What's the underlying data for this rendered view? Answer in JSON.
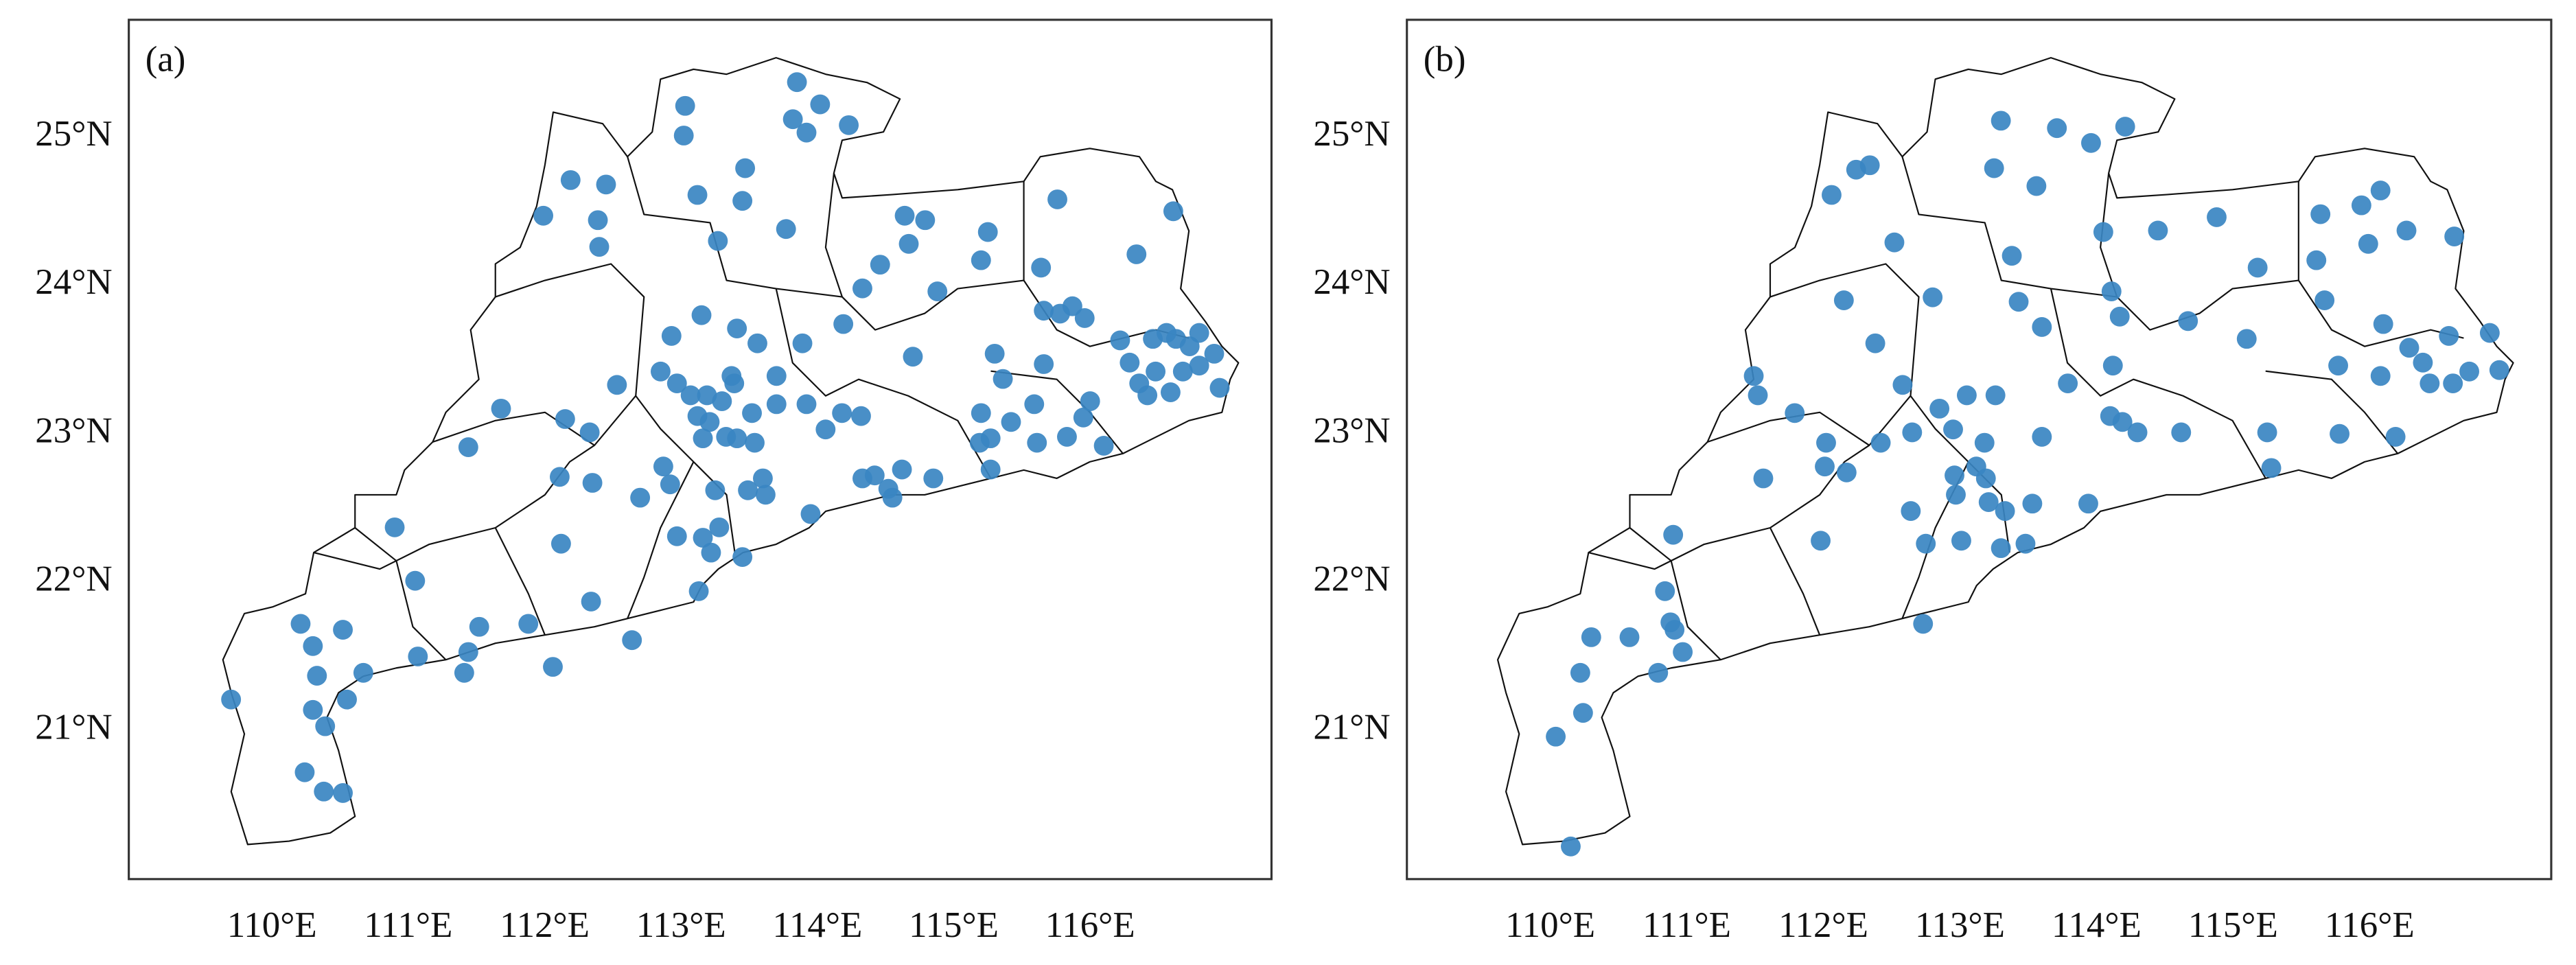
{
  "chart_data": [
    {
      "type": "scatter",
      "title": "(a)",
      "color": "#3a86c2",
      "xlim": [
        108.95,
        117.33
      ],
      "ylim": [
        20.0,
        25.79
      ],
      "xticks": [
        {
          "value": 110,
          "label": "110°E"
        },
        {
          "value": 111,
          "label": "111°E"
        },
        {
          "value": 112,
          "label": "112°E"
        },
        {
          "value": 113,
          "label": "113°E"
        },
        {
          "value": 114,
          "label": "114°E"
        },
        {
          "value": 115,
          "label": "115°E"
        },
        {
          "value": 116,
          "label": "116°E"
        }
      ],
      "yticks": [
        {
          "value": 21,
          "label": "21°N"
        },
        {
          "value": 22,
          "label": "22°N"
        },
        {
          "value": 23,
          "label": "23°N"
        },
        {
          "value": 24,
          "label": "24°N"
        },
        {
          "value": 25,
          "label": "25°N"
        }
      ],
      "x": [
        109.7,
        110.21,
        110.3,
        110.52,
        110.33,
        110.3,
        110.39,
        110.55,
        110.67,
        110.24,
        110.38,
        110.52,
        111.07,
        111.44,
        111.52,
        111.41,
        111.88,
        112.06,
        112.34,
        112.64,
        111.05,
        110.9,
        111.44,
        111.68,
        112.15,
        112.33,
        112.11,
        112.12,
        112.35,
        112.53,
        111.99,
        112.19,
        112.45,
        112.39,
        112.4,
        113.03,
        113.02,
        113.12,
        113.47,
        113.45,
        113.27,
        113.77,
        113.85,
        113.82,
        113.92,
        114.02,
        114.23,
        112.93,
        113.15,
        113.41,
        113.56,
        113.37,
        113.52,
        113.7,
        113.7,
        113.89,
        113.92,
        114.06,
        114.18,
        114.32,
        114.19,
        114.33,
        114.46,
        114.64,
        114.67,
        114.79,
        114.88,
        115.2,
        115.25,
        115.3,
        114.7,
        115.64,
        115.76,
        115.66,
        115.78,
        115.87,
        115.96,
        116.34,
        116.61,
        115.66,
        115.36,
        115.42,
        115.27,
        115.2,
        115.19,
        115.61,
        115.59,
        116.0,
        115.95,
        116.1,
        115.83,
        116.22,
        116.29,
        116.46,
        116.56,
        116.63,
        116.8,
        116.91,
        116.95,
        116.8,
        116.68,
        116.48,
        116.59,
        116.42,
        116.73,
        116.36,
        115.27,
        114.85,
        114.62,
        114.42,
        114.52,
        114.55,
        114.33,
        112.85,
        112.97,
        113.07,
        113.19,
        113.12,
        113.21,
        113.3,
        113.41,
        113.54,
        113.33,
        113.16,
        112.7,
        112.87,
        112.92,
        112.97,
        113.16,
        113.22,
        113.28,
        113.25,
        113.49,
        113.6,
        113.62,
        113.13,
        113.45,
        113.95,
        113.39
      ],
      "y": [
        21.21,
        21.72,
        21.57,
        21.68,
        21.37,
        21.14,
        21.03,
        21.21,
        21.39,
        20.72,
        20.59,
        20.58,
        21.5,
        21.53,
        21.7,
        21.39,
        21.72,
        21.43,
        21.87,
        21.61,
        22.01,
        22.37,
        22.91,
        23.17,
        23.1,
        23.01,
        22.71,
        22.26,
        22.67,
        23.33,
        24.47,
        24.71,
        24.68,
        24.44,
        24.26,
        25.21,
        25.01,
        24.61,
        24.79,
        24.57,
        24.3,
        24.38,
        25.37,
        25.12,
        25.03,
        25.22,
        25.08,
        23.66,
        23.8,
        23.71,
        23.61,
        23.39,
        23.14,
        23.39,
        23.2,
        23.61,
        23.2,
        23.03,
        23.14,
        23.12,
        23.74,
        23.98,
        24.14,
        24.47,
        24.28,
        24.44,
        23.96,
        24.17,
        24.36,
        23.54,
        23.52,
        24.12,
        24.58,
        23.83,
        23.81,
        23.86,
        23.78,
        24.21,
        24.5,
        23.47,
        23.37,
        23.08,
        22.97,
        23.14,
        22.94,
        22.94,
        23.2,
        23.22,
        23.11,
        22.92,
        22.98,
        23.63,
        23.48,
        23.64,
        23.68,
        23.64,
        23.68,
        23.54,
        23.31,
        23.46,
        23.42,
        23.42,
        23.28,
        23.26,
        23.59,
        23.34,
        22.76,
        22.7,
        22.76,
        22.72,
        22.63,
        22.57,
        22.7,
        23.42,
        23.34,
        23.26,
        23.26,
        23.12,
        23.08,
        23.22,
        22.97,
        22.94,
        22.98,
        22.97,
        22.57,
        22.78,
        22.66,
        22.31,
        22.3,
        22.2,
        22.37,
        22.62,
        22.62,
        22.7,
        22.59,
        21.94,
        22.17,
        22.46,
        23.34
      ]
    },
    {
      "type": "scatter",
      "title": "(b)",
      "color": "#3a86c2",
      "xlim": [
        108.95,
        117.33
      ],
      "ylim": [
        20.0,
        25.79
      ],
      "xticks": [
        {
          "value": 110,
          "label": "110°E"
        },
        {
          "value": 111,
          "label": "111°E"
        },
        {
          "value": 112,
          "label": "112°E"
        },
        {
          "value": 113,
          "label": "113°E"
        },
        {
          "value": 114,
          "label": "114°E"
        },
        {
          "value": 115,
          "label": "115°E"
        },
        {
          "value": 116,
          "label": "116°E"
        }
      ],
      "yticks": [
        {
          "value": 21,
          "label": "21°N"
        },
        {
          "value": 22,
          "label": "22°N"
        },
        {
          "value": 23,
          "label": "23°N"
        },
        {
          "value": 24,
          "label": "24°N"
        },
        {
          "value": 25,
          "label": "25°N"
        }
      ],
      "x": [
        110.15,
        110.04,
        110.24,
        110.22,
        110.3,
        110.58,
        110.91,
        110.79,
        110.97,
        110.88,
        110.84,
        110.9,
        111.49,
        111.52,
        111.79,
        111.56,
        112.02,
        111.98,
        112.01,
        112.17,
        112.15,
        112.06,
        112.24,
        112.34,
        112.52,
        112.38,
        112.42,
        112.58,
        112.65,
        112.8,
        112.73,
        112.64,
        112.75,
        112.97,
        112.96,
        113.19,
        113.21,
        113.33,
        113.53,
        113.48,
        113.3,
        113.01,
        112.85,
        112.95,
        113.05,
        113.12,
        113.18,
        113.26,
        113.25,
        113.3,
        113.56,
        113.71,
        113.96,
        114.21,
        113.38,
        113.43,
        113.6,
        113.6,
        113.79,
        114.1,
        114.12,
        114.11,
        114.05,
        114.17,
        113.94,
        114.19,
        114.3,
        114.45,
        114.62,
        114.67,
        114.88,
        115.1,
        115.18,
        115.25,
        115.28,
        115.61,
        115.64,
        115.67,
        115.77,
        115.78,
        115.94,
        115.99,
        116.08,
        116.1,
        116.08,
        116.29,
        116.27,
        116.39,
        116.44,
        116.58,
        116.61,
        116.62,
        116.73,
        116.88,
        116.95,
        116.19
      ],
      "y": [
        20.22,
        20.96,
        21.12,
        21.39,
        21.63,
        21.63,
        21.68,
        21.39,
        21.53,
        21.73,
        21.94,
        22.32,
        23.39,
        23.26,
        23.14,
        22.7,
        22.94,
        22.28,
        22.78,
        22.74,
        23.9,
        24.61,
        24.78,
        24.81,
        24.29,
        23.61,
        22.94,
        23.33,
        23.01,
        23.92,
        21.72,
        22.48,
        22.26,
        22.59,
        22.72,
        22.7,
        22.54,
        22.48,
        22.53,
        22.26,
        22.23,
        22.28,
        23.17,
        23.03,
        23.26,
        22.78,
        22.94,
        23.26,
        24.79,
        25.11,
        24.67,
        25.06,
        24.96,
        25.07,
        24.2,
        23.89,
        23.72,
        22.98,
        23.34,
        23.12,
        23.46,
        23.96,
        24.36,
        23.79,
        22.53,
        23.08,
        23.01,
        24.37,
        23.01,
        23.76,
        24.46,
        23.64,
        24.12,
        23.01,
        22.77,
        24.17,
        24.48,
        23.9,
        23.46,
        23.0,
        24.54,
        24.28,
        24.64,
        23.74,
        23.39,
        23.58,
        24.37,
        23.48,
        23.34,
        23.66,
        23.34,
        24.33,
        23.42,
        23.68,
        23.43,
        22.98
      ]
    }
  ]
}
